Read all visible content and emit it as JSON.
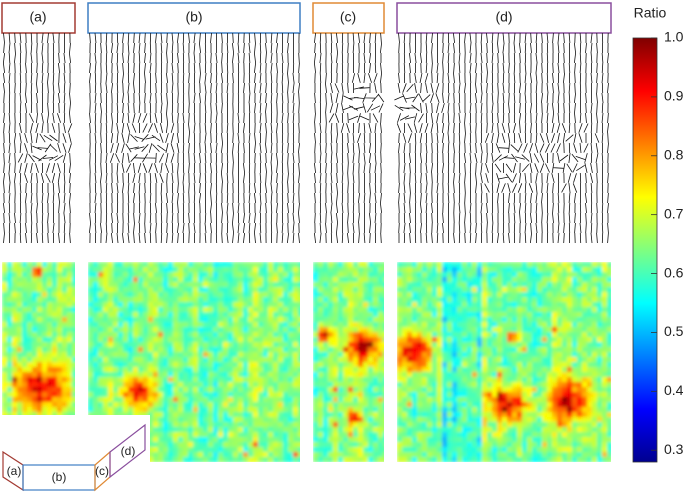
{
  "panels": {
    "labels": [
      "(a)",
      "(b)",
      "(c)",
      "(d)"
    ]
  },
  "colorbar": {
    "title": "Ratio",
    "ylim": [
      0.28,
      1.0
    ],
    "yticks": [
      0.3,
      0.4,
      0.5,
      0.6,
      0.7,
      0.8,
      0.9,
      {
        "value": 1.0,
        "label": "1.0"
      }
    ]
  },
  "inset": {
    "labels": [
      "(a)",
      "(b)",
      "(c)",
      "(d)"
    ]
  }
}
